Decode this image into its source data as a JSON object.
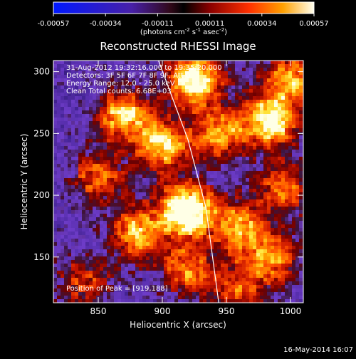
{
  "colorbar": {
    "ticks": [
      "-0.00057",
      "-0.00034",
      "-0.00011",
      "0.00011",
      "0.00034",
      "0.00057"
    ],
    "unit_line": "(photons cm",
    "unit_exp1": "-2",
    "unit_mid1": " s",
    "unit_exp2": "-1",
    "unit_mid2": " asec",
    "unit_exp3": "-2",
    "unit_end": ")",
    "range": [
      -0.00057,
      0.00057
    ]
  },
  "chart_data": {
    "type": "heatmap",
    "title": "Reconstructed RHESSI Image",
    "xlabel": "Heliocentric X (arcsec)",
    "ylabel": "Heliocentric Y (arcsec)",
    "xlim": [
      815,
      1010
    ],
    "ylim": [
      113,
      309
    ],
    "xticks": [
      850,
      900,
      950,
      1000
    ],
    "yticks": [
      150,
      200,
      250,
      300
    ],
    "peak": [
      919,
      188
    ],
    "limb_points": [
      [
        897,
        309
      ],
      [
        920,
        245
      ],
      [
        934,
        190
      ],
      [
        944,
        113
      ]
    ],
    "hot_spots": [
      {
        "x": 919,
        "y": 188,
        "intensity": 1.0
      },
      {
        "x": 925,
        "y": 293,
        "intensity": 0.9
      },
      {
        "x": 870,
        "y": 265,
        "intensity": 0.7
      },
      {
        "x": 985,
        "y": 260,
        "intensity": 0.85
      },
      {
        "x": 900,
        "y": 240,
        "intensity": 0.7
      },
      {
        "x": 945,
        "y": 250,
        "intensity": 0.6
      },
      {
        "x": 880,
        "y": 170,
        "intensity": 0.65
      },
      {
        "x": 960,
        "y": 175,
        "intensity": 0.6
      },
      {
        "x": 920,
        "y": 140,
        "intensity": 0.55
      },
      {
        "x": 985,
        "y": 150,
        "intensity": 0.55
      },
      {
        "x": 850,
        "y": 215,
        "intensity": 0.5
      },
      {
        "x": 995,
        "y": 205,
        "intensity": 0.5
      },
      {
        "x": 840,
        "y": 130,
        "intensity": 0.4
      },
      {
        "x": 960,
        "y": 125,
        "intensity": 0.45
      },
      {
        "x": 1000,
        "y": 295,
        "intensity": 0.6
      }
    ],
    "info_lines": [
      "31-Aug-2012 19:32:16.000 to 19:35:20.000",
      "Detectors: 3F 5F 6F 7F 8F 9F, Att 0",
      "Energy Range: 12.0 - 25.0 keV",
      "Clean      Total counts: 6.68E+03"
    ],
    "peak_label": "Position of Peak = [919,188]"
  },
  "footer": {
    "date": "16-May-2014 16:07"
  }
}
